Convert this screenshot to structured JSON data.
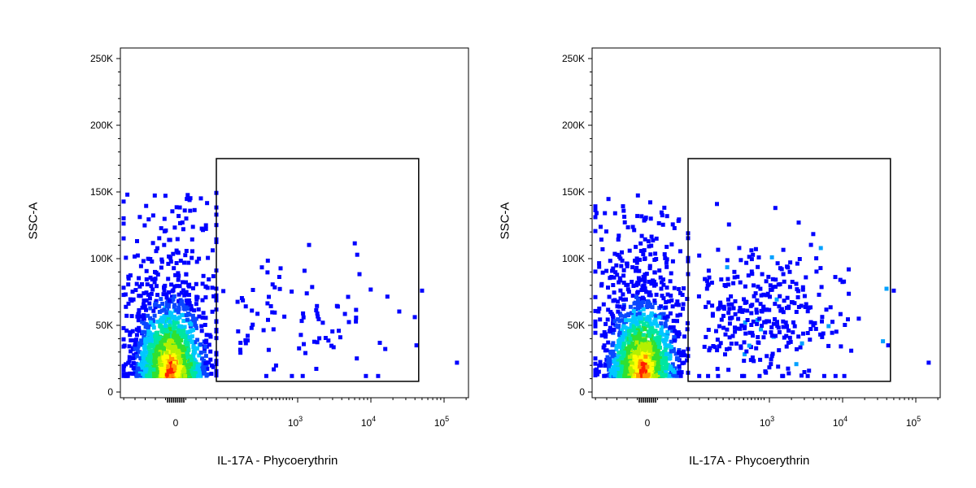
{
  "chart_data": [
    {
      "type": "scatter",
      "subtype": "flow-cytometry-density-dot-plot",
      "xlabel": "IL-17A - Phycoerythrin",
      "ylabel": "SSC-A",
      "x_scale": "biexponential",
      "y_ticks": [
        {
          "label": "0",
          "value": 0
        },
        {
          "label": "50K",
          "value": 50000
        },
        {
          "label": "100K",
          "value": 100000
        },
        {
          "label": "150K",
          "value": 150000
        },
        {
          "label": "200K",
          "value": 200000
        },
        {
          "label": "250K",
          "value": 250000
        }
      ],
      "x_ticks": [
        {
          "base": "0",
          "exp": "",
          "value": 0
        },
        {
          "base": "10",
          "exp": "3",
          "value": 1000
        },
        {
          "base": "10",
          "exp": "4",
          "value": 10000
        },
        {
          "base": "10",
          "exp": "5",
          "value": 100000
        }
      ],
      "ylim": [
        0,
        260000
      ],
      "gate": {
        "shape": "rectangle",
        "x": [
          200,
          45000
        ],
        "y": [
          8000,
          175000
        ]
      },
      "events_in_gate": 90,
      "colors": {
        "low": "#0000ff",
        "mid": "#00c8ff",
        "green": "#30e030",
        "yellow": "#ffff00",
        "high": "#ff0000"
      }
    },
    {
      "type": "scatter",
      "subtype": "flow-cytometry-density-dot-plot",
      "xlabel": "IL-17A - Phycoerythrin",
      "ylabel": "SSC-A",
      "x_scale": "biexponential",
      "y_ticks": [
        {
          "label": "0",
          "value": 0
        },
        {
          "label": "50K",
          "value": 50000
        },
        {
          "label": "100K",
          "value": 100000
        },
        {
          "label": "150K",
          "value": 150000
        },
        {
          "label": "200K",
          "value": 200000
        },
        {
          "label": "250K",
          "value": 250000
        }
      ],
      "x_ticks": [
        {
          "base": "0",
          "exp": "",
          "value": 0
        },
        {
          "base": "10",
          "exp": "3",
          "value": 1000
        },
        {
          "base": "10",
          "exp": "4",
          "value": 10000
        },
        {
          "base": "10",
          "exp": "5",
          "value": 100000
        }
      ],
      "ylim": [
        0,
        260000
      ],
      "gate": {
        "shape": "rectangle",
        "x": [
          200,
          45000
        ],
        "y": [
          8000,
          175000
        ]
      },
      "events_in_gate": 330,
      "colors": {
        "low": "#0000ff",
        "mid": "#00c8ff",
        "green": "#30e030",
        "yellow": "#ffff00",
        "high": "#ff0000"
      }
    }
  ]
}
